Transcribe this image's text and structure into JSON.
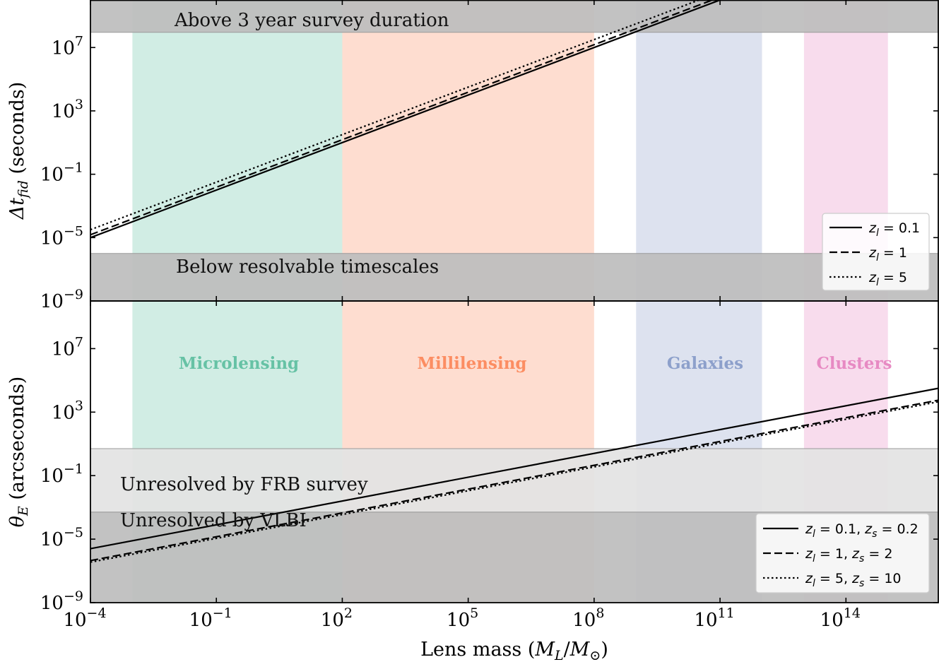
{
  "chart_data": {
    "type": "line",
    "shared_x": {
      "label": "Lens mass (M_L/M_⊙)",
      "scale": "log",
      "xlim_log10": [
        -4,
        16.2
      ],
      "ticks_log10": [
        -4,
        -1,
        2,
        5,
        8,
        11,
        14
      ]
    },
    "regions": [
      {
        "name": "Microlensing",
        "xrange_log10": [
          -3,
          2
        ],
        "color": "#66c2a5"
      },
      {
        "name": "Millilensing",
        "xrange_log10": [
          2,
          8
        ],
        "color": "#fc8d62"
      },
      {
        "name": "Galaxies",
        "xrange_log10": [
          9,
          12
        ],
        "color": "#8da0cb"
      },
      {
        "name": "Clusters",
        "xrange_log10": [
          13,
          15
        ],
        "color": "#e78ac3"
      }
    ],
    "panels": [
      {
        "id": "time_delay",
        "ylabel": "Δt_fid (seconds)",
        "ylabel_main": "Δt",
        "ylabel_sub": "fid",
        "ylabel_rest": " (seconds)",
        "scale": "log",
        "ylim_log10": [
          -9,
          10
        ],
        "ticks_log10": [
          -9,
          -5,
          -1,
          3,
          7
        ],
        "bands": [
          {
            "label": "Above 3 year survey duration",
            "yrange_log10": [
              7.96,
              10
            ],
            "shade": "#bdbdbd"
          },
          {
            "label": "Below resolvable timescales",
            "yrange_log10": [
              -9,
              -6.0
            ],
            "shade": "#bdbdbd"
          }
        ],
        "series": [
          {
            "name": "z_l = 0.1",
            "legend_main": "z",
            "legend_sub": "l",
            "legend_rest": " = 0.1",
            "style": "solid",
            "slope": 1,
            "intercept_log10": -5.0
          },
          {
            "name": "z_l = 1",
            "legend_main": "z",
            "legend_sub": "l",
            "legend_rest": " = 1",
            "style": "dashed",
            "slope": 1,
            "intercept_log10": -4.82
          },
          {
            "name": "z_l = 5",
            "legend_main": "z",
            "legend_sub": "l",
            "legend_rest": " = 5",
            "style": "dotted",
            "slope": 1,
            "intercept_log10": -4.5
          }
        ]
      },
      {
        "id": "einstein_radius",
        "ylabel": "θ_E (arcseconds)",
        "ylabel_main": "θ",
        "ylabel_sub": "E",
        "ylabel_rest": " (arcseconds)",
        "scale": "log",
        "ylim_log10": [
          -9,
          10
        ],
        "ticks_log10": [
          -9,
          -5,
          -1,
          3,
          7
        ],
        "bands": [
          {
            "label": "Unresolved by FRB survey",
            "yrange_log10": [
              -3.3,
              0.7
            ],
            "shade": "#e3e3e3"
          },
          {
            "label": "Unresolved by VLBI",
            "yrange_log10": [
              -9,
              -3.3
            ],
            "shade": "#bdbdbd"
          }
        ],
        "series": [
          {
            "name": "z_l = 0.1, z_s = 0.2",
            "legend_main": "z",
            "legend_sub": "l",
            "legend_rest": " = 0.1, ",
            "legend_main2": "z",
            "legend_sub2": "s",
            "legend_rest2": " = 0.2",
            "style": "solid",
            "slope": 0.5,
            "intercept_log10": -5.6
          },
          {
            "name": "z_l = 1, z_s = 2",
            "legend_main": "z",
            "legend_sub": "l",
            "legend_rest": " = 1, ",
            "legend_main2": "z",
            "legend_sub2": "s",
            "legend_rest2": " = 2",
            "style": "dashed",
            "slope": 0.5,
            "intercept_log10": -6.35
          },
          {
            "name": "z_l = 5, z_s = 10",
            "legend_main": "z",
            "legend_sub": "l",
            "legend_rest": " = 5, ",
            "legend_main2": "z",
            "legend_sub2": "s",
            "legend_rest2": " = 10",
            "style": "dotted",
            "slope": 0.5,
            "intercept_log10": -6.45
          }
        ]
      }
    ]
  }
}
